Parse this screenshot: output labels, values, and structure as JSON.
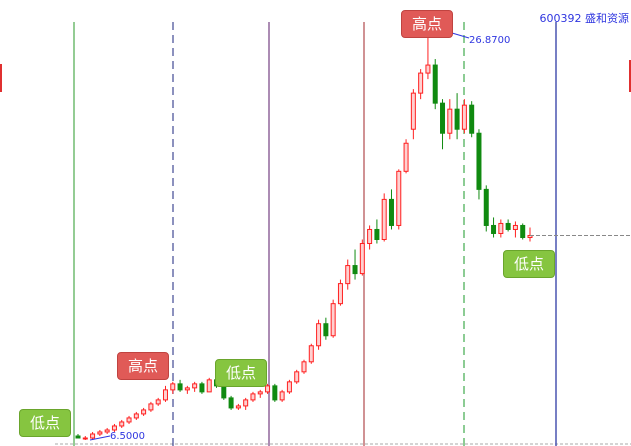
{
  "title": "600392 盛和资源",
  "colors": {
    "up": "#ff2020",
    "down": "#108a10",
    "low_tag": "#86c540",
    "high_tag": "#e05a57",
    "annotation": "#2f36e0"
  },
  "chart_data": {
    "type": "candlestick",
    "title": "600392 盛和资源",
    "series_format": [
      "open",
      "high",
      "low",
      "close"
    ],
    "candles": [
      [
        6.7,
        6.8,
        6.6,
        6.6
      ],
      [
        6.6,
        6.7,
        6.5,
        6.6
      ],
      [
        6.6,
        6.9,
        6.5,
        6.8
      ],
      [
        6.8,
        7.0,
        6.7,
        6.9
      ],
      [
        6.9,
        7.1,
        6.8,
        7.0
      ],
      [
        7.0,
        7.3,
        6.9,
        7.2
      ],
      [
        7.2,
        7.5,
        7.1,
        7.4
      ],
      [
        7.4,
        7.7,
        7.3,
        7.6
      ],
      [
        7.6,
        7.9,
        7.5,
        7.8
      ],
      [
        7.8,
        8.1,
        7.7,
        8.0
      ],
      [
        8.0,
        8.4,
        7.9,
        8.3
      ],
      [
        8.3,
        8.6,
        8.2,
        8.5
      ],
      [
        8.5,
        9.2,
        8.4,
        9.0
      ],
      [
        9.0,
        9.4,
        8.8,
        9.3
      ],
      [
        9.3,
        9.5,
        8.9,
        9.0
      ],
      [
        9.0,
        9.2,
        8.8,
        9.1
      ],
      [
        9.1,
        9.4,
        8.9,
        9.3
      ],
      [
        9.3,
        9.4,
        8.8,
        8.9
      ],
      [
        8.9,
        9.6,
        8.9,
        9.5
      ],
      [
        9.5,
        9.7,
        9.1,
        9.2
      ],
      [
        9.2,
        9.3,
        8.5,
        8.6
      ],
      [
        8.6,
        8.7,
        8.0,
        8.1
      ],
      [
        8.1,
        8.3,
        8.0,
        8.2
      ],
      [
        8.2,
        8.6,
        8.0,
        8.5
      ],
      [
        8.5,
        8.9,
        8.4,
        8.8
      ],
      [
        8.8,
        9.0,
        8.6,
        8.9
      ],
      [
        8.9,
        9.3,
        8.8,
        9.2
      ],
      [
        9.2,
        9.3,
        8.4,
        8.5
      ],
      [
        8.5,
        9.0,
        8.4,
        8.9
      ],
      [
        8.9,
        9.5,
        8.8,
        9.4
      ],
      [
        9.4,
        10.0,
        9.3,
        9.9
      ],
      [
        9.9,
        10.5,
        9.8,
        10.4
      ],
      [
        10.4,
        11.3,
        10.3,
        11.2
      ],
      [
        11.2,
        12.5,
        11.0,
        12.3
      ],
      [
        12.3,
        12.6,
        11.5,
        11.7
      ],
      [
        11.7,
        13.5,
        11.6,
        13.3
      ],
      [
        13.3,
        14.5,
        13.2,
        14.3
      ],
      [
        14.3,
        15.5,
        14.0,
        15.2
      ],
      [
        15.2,
        16.0,
        14.5,
        14.8
      ],
      [
        14.8,
        16.5,
        14.7,
        16.3
      ],
      [
        16.3,
        17.2,
        16.0,
        17.0
      ],
      [
        17.0,
        17.5,
        16.3,
        16.5
      ],
      [
        16.5,
        18.8,
        16.4,
        18.5
      ],
      [
        18.5,
        19.0,
        17.0,
        17.2
      ],
      [
        17.2,
        20.0,
        17.0,
        19.9
      ],
      [
        19.9,
        21.5,
        19.8,
        21.3
      ],
      [
        22.0,
        24.0,
        21.5,
        23.8
      ],
      [
        23.8,
        25.0,
        23.5,
        24.8
      ],
      [
        24.8,
        26.87,
        24.5,
        25.2
      ],
      [
        25.2,
        25.5,
        23.0,
        23.3
      ],
      [
        23.3,
        23.5,
        21.0,
        21.8
      ],
      [
        21.8,
        23.5,
        21.5,
        23.0
      ],
      [
        23.0,
        23.8,
        21.5,
        22.0
      ],
      [
        22.0,
        23.5,
        21.8,
        23.2
      ],
      [
        23.2,
        23.4,
        21.6,
        21.8
      ],
      [
        21.8,
        22.0,
        18.5,
        19.0
      ],
      [
        19.0,
        19.2,
        16.9,
        17.2
      ],
      [
        17.2,
        17.6,
        16.6,
        16.8
      ],
      [
        16.8,
        17.5,
        16.6,
        17.3
      ],
      [
        17.3,
        17.5,
        16.9,
        17.0
      ],
      [
        17.0,
        17.4,
        16.6,
        17.2
      ],
      [
        17.2,
        17.3,
        16.5,
        16.6
      ],
      [
        16.6,
        17.1,
        16.4,
        16.7
      ]
    ],
    "annotations": [
      {
        "label": "低点",
        "kind": "low"
      },
      {
        "label": "高点",
        "kind": "high"
      },
      {
        "label": "低点",
        "kind": "low"
      },
      {
        "label": "高点",
        "kind": "high"
      },
      {
        "label": "低点",
        "kind": "low"
      }
    ],
    "low_price_label": "6.5000",
    "high_price_label": "26.8700",
    "last_price": 16.7
  }
}
